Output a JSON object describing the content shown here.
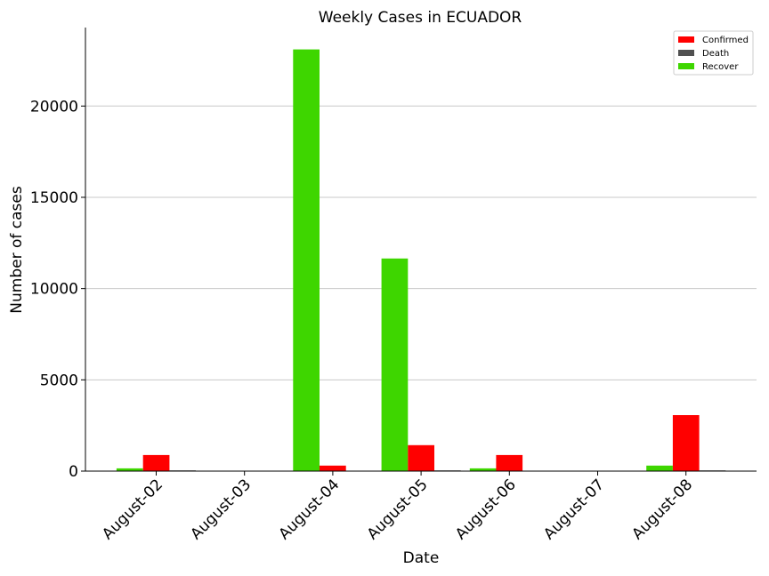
{
  "chart_data": {
    "type": "bar",
    "title": "Weekly Cases in ECUADOR",
    "xlabel": "Date",
    "ylabel": "Number of cases",
    "categories": [
      "August-02",
      "August-03",
      "August-04",
      "August-05",
      "August-06",
      "August-07",
      "August-08"
    ],
    "series": [
      {
        "name": "Recover",
        "color": "#3ed600",
        "values": [
          150,
          0,
          23100,
          11650,
          150,
          0,
          300
        ]
      },
      {
        "name": "Confirmed",
        "color": "#ff0000",
        "values": [
          880,
          0,
          300,
          1420,
          880,
          0,
          3070
        ]
      },
      {
        "name": "Death",
        "color": "#505050",
        "values": [
          40,
          0,
          0,
          40,
          0,
          0,
          40
        ]
      }
    ],
    "legend_order": [
      "Confirmed",
      "Death",
      "Recover"
    ],
    "legend_position": "top-right",
    "ylim": [
      0,
      24300
    ],
    "yticks": [
      0,
      5000,
      10000,
      15000,
      20000
    ],
    "grid": "y"
  }
}
